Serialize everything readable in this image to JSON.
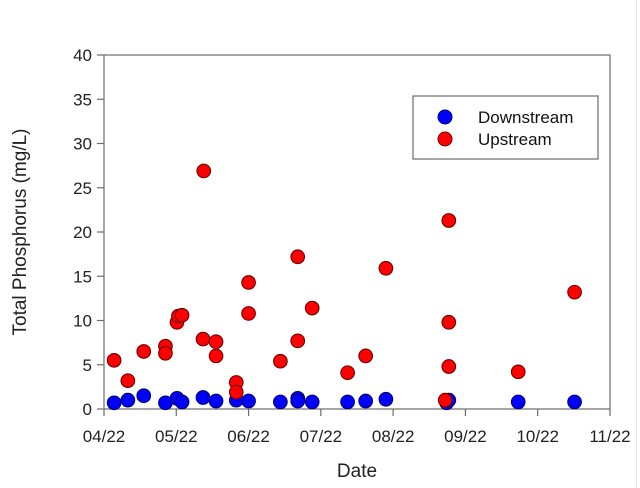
{
  "chart_data": {
    "type": "scatter",
    "title": "",
    "xlabel": "Date",
    "ylabel": "Total Phosphorus (mg/L)",
    "ylim": [
      0,
      40
    ],
    "yticks": [
      0,
      5,
      10,
      15,
      20,
      25,
      30,
      35,
      40
    ],
    "xticks": [
      "04/22",
      "05/22",
      "06/22",
      "07/22",
      "08/22",
      "09/22",
      "10/22",
      "11/22"
    ],
    "xlim_months_from_apr22": [
      0,
      7
    ],
    "grid": false,
    "legend_position": "upper right",
    "series": [
      {
        "name": "Downstream",
        "color": "#0000ff",
        "points": [
          {
            "date": "2022-04-05",
            "m": 0.14,
            "y": 0.7
          },
          {
            "date": "2022-04-11",
            "m": 0.33,
            "y": 1.0
          },
          {
            "date": "2022-04-18",
            "m": 0.55,
            "y": 1.5
          },
          {
            "date": "2022-04-27",
            "m": 0.85,
            "y": 0.7
          },
          {
            "date": "2022-05-01",
            "m": 1.01,
            "y": 1.2
          },
          {
            "date": "2022-05-03",
            "m": 1.08,
            "y": 0.8
          },
          {
            "date": "2022-05-12",
            "m": 1.37,
            "y": 1.3
          },
          {
            "date": "2022-05-17",
            "m": 1.55,
            "y": 0.9
          },
          {
            "date": "2022-05-26",
            "m": 1.83,
            "y": 1.0
          },
          {
            "date": "2022-05-31",
            "m": 2.0,
            "y": 0.9
          },
          {
            "date": "2022-06-14",
            "m": 2.44,
            "y": 0.8
          },
          {
            "date": "2022-06-21",
            "m": 2.68,
            "y": 1.2
          },
          {
            "date": "2022-06-21",
            "m": 2.68,
            "y": 0.9
          },
          {
            "date": "2022-06-27",
            "m": 2.88,
            "y": 0.8
          },
          {
            "date": "2022-07-12",
            "m": 3.37,
            "y": 0.8
          },
          {
            "date": "2022-07-20",
            "m": 3.62,
            "y": 0.9
          },
          {
            "date": "2022-07-28",
            "m": 3.9,
            "y": 1.1
          },
          {
            "date": "2022-08-24",
            "m": 4.74,
            "y": 0.7
          },
          {
            "date": "2022-08-25",
            "m": 4.77,
            "y": 1.0
          },
          {
            "date": "2022-09-23",
            "m": 5.73,
            "y": 0.8
          },
          {
            "date": "2022-10-17",
            "m": 6.51,
            "y": 0.8
          }
        ]
      },
      {
        "name": "Upstream",
        "color": "#ff0000",
        "points": [
          {
            "date": "2022-04-05",
            "m": 0.14,
            "y": 5.5
          },
          {
            "date": "2022-04-11",
            "m": 0.33,
            "y": 3.2
          },
          {
            "date": "2022-04-18",
            "m": 0.55,
            "y": 6.5
          },
          {
            "date": "2022-04-27",
            "m": 0.85,
            "y": 7.1
          },
          {
            "date": "2022-04-27",
            "m": 0.85,
            "y": 6.3
          },
          {
            "date": "2022-05-01",
            "m": 1.01,
            "y": 9.8
          },
          {
            "date": "2022-05-01",
            "m": 1.03,
            "y": 10.5
          },
          {
            "date": "2022-05-03",
            "m": 1.08,
            "y": 10.6
          },
          {
            "date": "2022-05-12",
            "m": 1.38,
            "y": 26.9
          },
          {
            "date": "2022-05-12",
            "m": 1.37,
            "y": 7.9
          },
          {
            "date": "2022-05-17",
            "m": 1.55,
            "y": 7.6
          },
          {
            "date": "2022-05-17",
            "m": 1.55,
            "y": 6.0
          },
          {
            "date": "2022-05-26",
            "m": 1.83,
            "y": 3.0
          },
          {
            "date": "2022-05-26",
            "m": 1.83,
            "y": 1.9
          },
          {
            "date": "2022-05-31",
            "m": 2.0,
            "y": 14.3
          },
          {
            "date": "2022-05-31",
            "m": 2.0,
            "y": 10.8
          },
          {
            "date": "2022-06-14",
            "m": 2.44,
            "y": 5.4
          },
          {
            "date": "2022-06-21",
            "m": 2.68,
            "y": 17.2
          },
          {
            "date": "2022-06-21",
            "m": 2.68,
            "y": 7.7
          },
          {
            "date": "2022-06-27",
            "m": 2.88,
            "y": 11.4
          },
          {
            "date": "2022-07-12",
            "m": 3.37,
            "y": 4.1
          },
          {
            "date": "2022-07-20",
            "m": 3.62,
            "y": 6.0
          },
          {
            "date": "2022-07-28",
            "m": 3.9,
            "y": 15.9
          },
          {
            "date": "2022-08-25",
            "m": 4.77,
            "y": 21.3
          },
          {
            "date": "2022-08-25",
            "m": 4.77,
            "y": 9.8
          },
          {
            "date": "2022-08-25",
            "m": 4.77,
            "y": 4.8
          },
          {
            "date": "2022-08-24",
            "m": 4.72,
            "y": 1.0
          },
          {
            "date": "2022-09-23",
            "m": 5.73,
            "y": 4.2
          },
          {
            "date": "2022-10-17",
            "m": 6.51,
            "y": 13.2
          }
        ]
      }
    ]
  },
  "legend": {
    "items": [
      {
        "label": "Downstream",
        "color": "#0000ff"
      },
      {
        "label": "Upstream",
        "color": "#ff0000"
      }
    ]
  },
  "axes": {
    "xlabel": "Date",
    "ylabel": "Total Phosphorus (mg/L)"
  }
}
